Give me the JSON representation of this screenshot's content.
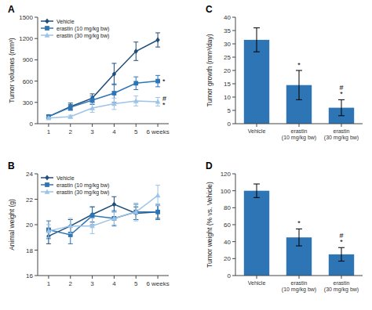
{
  "chart_data": [
    {
      "type": "line",
      "title": "A",
      "x": [
        1,
        2,
        3,
        4,
        5,
        6
      ],
      "xlim": [
        0.5,
        6.5
      ],
      "xticks": [
        1,
        2,
        3,
        4,
        5,
        {
          "value": 6,
          "label": "6 weeks"
        }
      ],
      "ylabel": "Tumor volumes (mm³)",
      "ylim": [
        0,
        1500
      ],
      "yticks": [
        0,
        300,
        600,
        900,
        1200,
        1500
      ],
      "legend": "upper left",
      "series": [
        {
          "name": "Vehicle",
          "color": "#1f4e79",
          "marker": "diamond",
          "values": [
            100,
            240,
            360,
            700,
            1020,
            1180
          ],
          "errors": [
            20,
            50,
            60,
            150,
            130,
            100
          ]
        },
        {
          "name": "erastin (10 mg/kg bw)",
          "color": "#2e75b6",
          "marker": "square",
          "values": [
            100,
            230,
            330,
            430,
            570,
            600
          ],
          "errors": [
            15,
            40,
            60,
            130,
            90,
            80
          ],
          "annotations": [
            null,
            null,
            null,
            null,
            null,
            "*"
          ]
        },
        {
          "name": "erastin (30 mg/kg bw)",
          "color": "#9dc3e6",
          "marker": "triangle",
          "values": [
            80,
            100,
            220,
            280,
            320,
            310
          ],
          "errors": [
            15,
            20,
            60,
            80,
            70,
            60
          ],
          "annotations": [
            null,
            null,
            null,
            null,
            null,
            "#\n*"
          ]
        }
      ]
    },
    {
      "type": "line",
      "title": "B",
      "x": [
        1,
        2,
        3,
        4,
        5,
        6
      ],
      "xlim": [
        0.5,
        6.5
      ],
      "xticks": [
        1,
        2,
        3,
        4,
        5,
        {
          "value": 6,
          "label": "6 weeks"
        }
      ],
      "ylabel": "Animal weight (g)",
      "ylim": [
        16,
        24
      ],
      "yticks": [
        16,
        18,
        20,
        22,
        24
      ],
      "legend": "upper left",
      "series": [
        {
          "name": "Vehicle",
          "color": "#1f4e79",
          "marker": "diamond",
          "values": [
            19.1,
            19.9,
            20.8,
            21.6,
            20.9,
            21.0
          ],
          "errors": [
            0.6,
            0.5,
            0.6,
            0.6,
            0.5,
            0.5
          ]
        },
        {
          "name": "erastin (10 mg/kg bw)",
          "color": "#2e75b6",
          "marker": "square",
          "values": [
            19.6,
            19.2,
            20.7,
            20.5,
            21.0,
            21.0
          ],
          "errors": [
            0.7,
            0.7,
            0.7,
            0.6,
            0.6,
            0.6
          ]
        },
        {
          "name": "erastin (30 mg/kg bw)",
          "color": "#9dc3e6",
          "marker": "triangle",
          "values": [
            19.5,
            19.9,
            19.9,
            20.5,
            21.0,
            22.3
          ],
          "errors": [
            0.5,
            0.6,
            0.6,
            0.5,
            0.7,
            0.8
          ]
        }
      ]
    },
    {
      "type": "bar",
      "title": "C",
      "categories": [
        "Vehicle",
        "erastin\n(10 mg/kg bw)",
        "erastin\n(30 mg/kg bw)"
      ],
      "values": [
        31.5,
        14.5,
        6.0
      ],
      "errors": [
        4.5,
        5.5,
        3.0
      ],
      "color": "#2e75b6",
      "ylabel": "Tumor growth (mm³/day)",
      "ylim": [
        0,
        40
      ],
      "yticks": [
        0,
        5,
        10,
        15,
        20,
        25,
        30,
        35,
        40
      ],
      "annotations": [
        null,
        "*",
        "#\n*"
      ]
    },
    {
      "type": "bar",
      "title": "D",
      "categories": [
        "Vehicle",
        "erastin\n(10 mg/kg bw)",
        "erastin\n(30 mg/kg bw)"
      ],
      "values": [
        100,
        45,
        25
      ],
      "errors": [
        8,
        10,
        8
      ],
      "color": "#2e75b6",
      "ylabel": "Tumor weight (% vs. Vehicle)",
      "ylim": [
        0,
        120
      ],
      "yticks": [
        0,
        20,
        40,
        60,
        80,
        100,
        120
      ],
      "annotations": [
        null,
        "*",
        "#\n*"
      ]
    }
  ]
}
